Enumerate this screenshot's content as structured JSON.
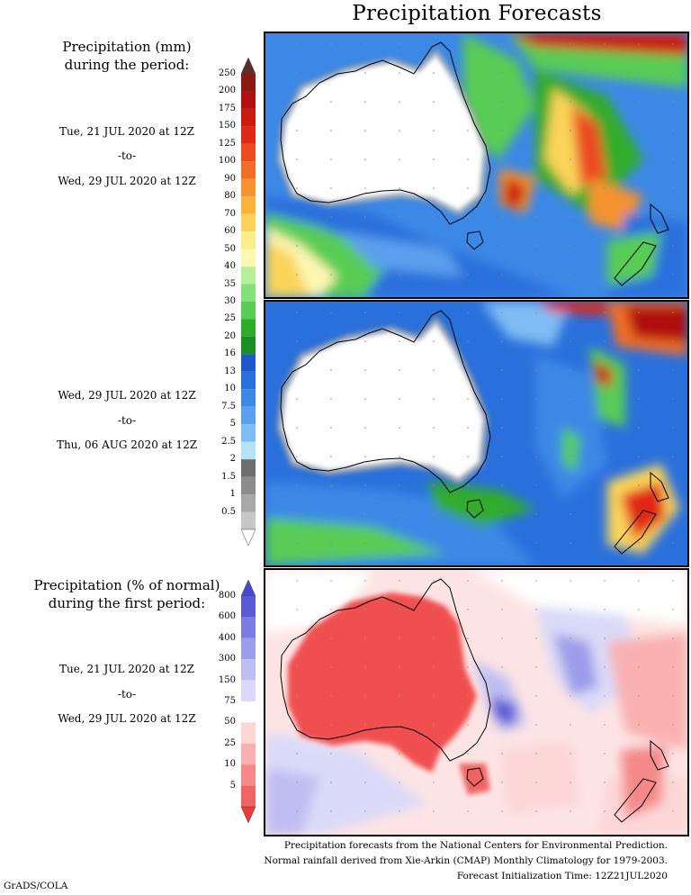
{
  "title": "Precipitation Forecasts",
  "top_header": [
    "Precipitation (mm)",
    "during the period:"
  ],
  "period1": {
    "start": "Tue, 21 JUL 2020 at 12Z",
    "sep": "-to-",
    "end": "Wed, 29 JUL 2020 at 12Z"
  },
  "period2": {
    "start": "Wed, 29 JUL 2020 at 12Z",
    "sep": "-to-",
    "end": "Thu, 06 AUG 2020 at 12Z"
  },
  "bottom_header": [
    "Precipitation (% of normal)",
    "during the first period:"
  ],
  "period3": {
    "start": "Tue, 21 JUL 2020 at 12Z",
    "sep": "-to-",
    "end": "Wed, 29 JUL 2020 at 12Z"
  },
  "mm_legend": {
    "labels": [
      "250",
      "200",
      "175",
      "150",
      "125",
      "100",
      "90",
      "80",
      "70",
      "60",
      "50",
      "40",
      "35",
      "30",
      "25",
      "20",
      "16",
      "13",
      "10",
      "7.5",
      "5",
      "2.5",
      "2",
      "1.5",
      "1",
      "0.5"
    ],
    "colors": [
      "#8a1a10",
      "#b01010",
      "#cc1a10",
      "#e02818",
      "#ec4a20",
      "#f06e28",
      "#f5932e",
      "#f8b438",
      "#fbd45a",
      "#fcec8c",
      "#fdf7b4",
      "#b6ef9a",
      "#84e07a",
      "#58cc54",
      "#30ac2c",
      "#1a8e22",
      "#1c58c8",
      "#2a70dc",
      "#3c88e6",
      "#5aa0ee",
      "#7fbcf4",
      "#b6e2f8",
      "#6e6e6e",
      "#8c8c8c",
      "#a8a8a8",
      "#c6c6c6"
    ],
    "top_arrow": "#5a2e2a",
    "bottom_arrow": "#ffffff"
  },
  "pct_legend": {
    "labels": [
      "800",
      "600",
      "400",
      "300",
      "150",
      "75",
      "50",
      "25",
      "10",
      "5"
    ],
    "colors": [
      "#5a5ad6",
      "#7c7ce0",
      "#9c9cea",
      "#bebef2",
      "#dadaf8",
      "#ffffff",
      "#fdd6d6",
      "#f9b0b0",
      "#f58888",
      "#f06464"
    ],
    "top_arrow": "#4848cc",
    "bottom_arrow": "#ea3a3a"
  },
  "footer": [
    "Precipitation forecasts from the National Centers for Environmental Prediction.",
    "Normal rainfall derived from Xie-Arkin (CMAP) Monthly Climatology for 1979-2003.",
    "Forecast Initialization Time: 12Z21JUL2020"
  ],
  "credit": "GrADS/COLA"
}
